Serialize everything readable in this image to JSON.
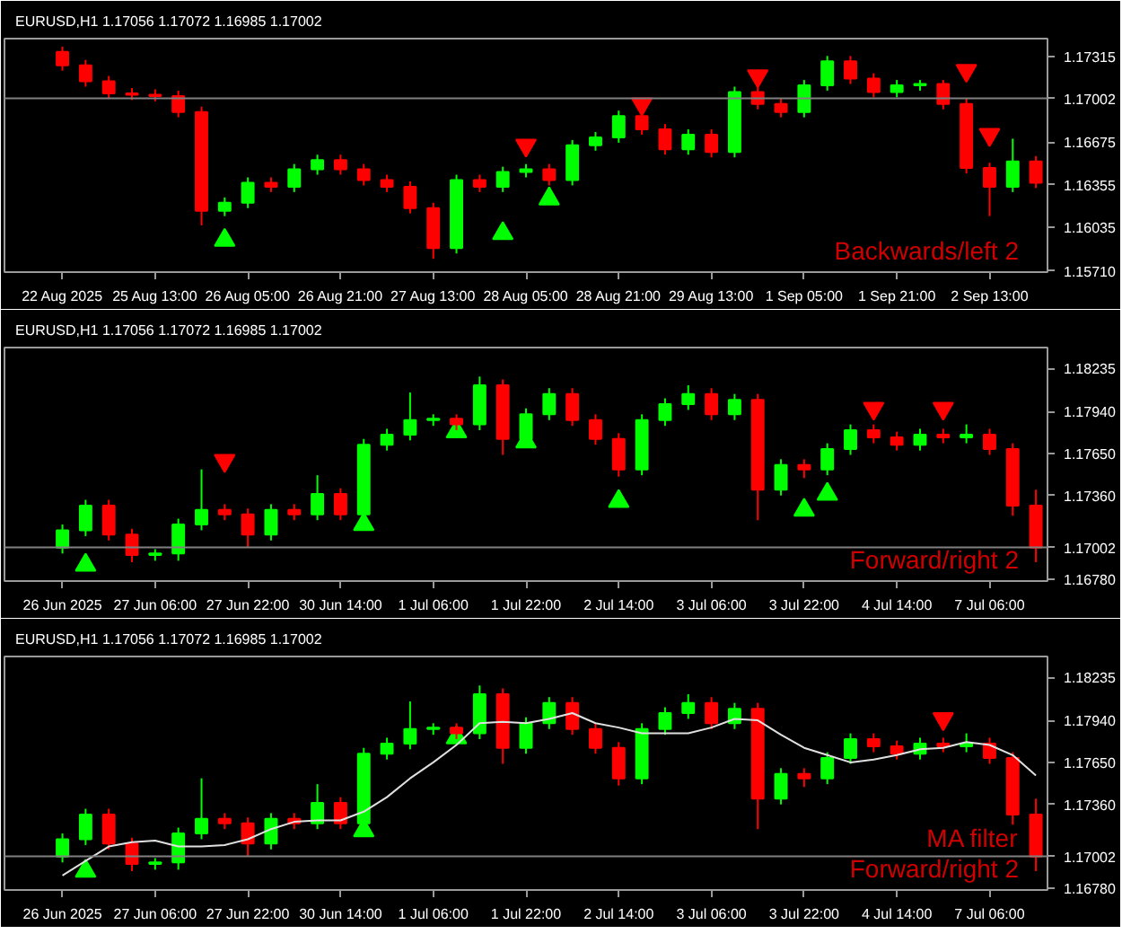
{
  "chart_data": [
    {
      "type": "candlestick",
      "title": "EURUSD,H1  1.17056 1.17072 1.16985 1.17002",
      "categories": [
        "22 Aug 2025",
        null,
        null,
        null,
        "25 Aug 13:00",
        null,
        null,
        null,
        "26 Aug 05:00",
        null,
        null,
        null,
        "26 Aug 21:00",
        null,
        null,
        null,
        "27 Aug 13:00",
        null,
        null,
        null,
        "28 Aug 05:00",
        null,
        null,
        null,
        "28 Aug 21:00",
        null,
        null,
        null,
        "29 Aug 13:00",
        null,
        null,
        null,
        "1 Sep 05:00",
        null,
        null,
        null,
        "1 Sep 21:00",
        null,
        null,
        null,
        "2 Sep 13:00",
        null,
        null
      ],
      "ohlc": [
        [
          1.1735,
          1.1739,
          1.1721,
          1.1725
        ],
        [
          1.1725,
          1.1729,
          1.1709,
          1.1713
        ],
        [
          1.1713,
          1.1717,
          1.17,
          1.1704
        ],
        [
          1.1704,
          1.1708,
          1.1699,
          1.1703
        ],
        [
          1.1703,
          1.1707,
          1.1698,
          1.1702
        ],
        [
          1.1702,
          1.1706,
          1.1686,
          1.169
        ],
        [
          1.169,
          1.1694,
          1.1605,
          1.1616
        ],
        [
          1.1616,
          1.1626,
          1.1612,
          1.1622
        ],
        [
          1.1622,
          1.1641,
          1.1618,
          1.1637
        ],
        [
          1.1637,
          1.1641,
          1.163,
          1.1634
        ],
        [
          1.1634,
          1.1651,
          1.163,
          1.1647
        ],
        [
          1.1647,
          1.1658,
          1.1643,
          1.1654
        ],
        [
          1.1654,
          1.1658,
          1.1643,
          1.1647
        ],
        [
          1.1647,
          1.1651,
          1.1635,
          1.1639
        ],
        [
          1.1639,
          1.1643,
          1.163,
          1.1634
        ],
        [
          1.1634,
          1.1638,
          1.1614,
          1.1618
        ],
        [
          1.1618,
          1.1622,
          1.158,
          1.1588
        ],
        [
          1.1588,
          1.1643,
          1.1584,
          1.1639
        ],
        [
          1.1639,
          1.1643,
          1.163,
          1.1634
        ],
        [
          1.1634,
          1.1649,
          1.163,
          1.1645
        ],
        [
          1.1645,
          1.1651,
          1.1641,
          1.1647
        ],
        [
          1.1647,
          1.1651,
          1.1635,
          1.1639
        ],
        [
          1.1639,
          1.1669,
          1.1635,
          1.1665
        ],
        [
          1.1665,
          1.1675,
          1.1661,
          1.1671
        ],
        [
          1.1671,
          1.1691,
          1.1667,
          1.1687
        ],
        [
          1.1687,
          1.1691,
          1.1673,
          1.1677
        ],
        [
          1.1677,
          1.1681,
          1.1658,
          1.1662
        ],
        [
          1.1662,
          1.1677,
          1.1658,
          1.1673
        ],
        [
          1.1673,
          1.1677,
          1.1656,
          1.166
        ],
        [
          1.166,
          1.1709,
          1.1656,
          1.1705
        ],
        [
          1.1705,
          1.1709,
          1.1692,
          1.1696
        ],
        [
          1.1696,
          1.17,
          1.1686,
          1.169
        ],
        [
          1.169,
          1.1714,
          1.1686,
          1.171
        ],
        [
          1.171,
          1.1732,
          1.1706,
          1.1728
        ],
        [
          1.1728,
          1.1732,
          1.1711,
          1.1715
        ],
        [
          1.1715,
          1.1719,
          1.1701,
          1.1705
        ],
        [
          1.1705,
          1.1714,
          1.1701,
          1.171
        ],
        [
          1.171,
          1.1714,
          1.1706,
          1.1711
        ],
        [
          1.1711,
          1.1714,
          1.1692,
          1.1696
        ],
        [
          1.1696,
          1.17,
          1.1644,
          1.1648
        ],
        [
          1.1648,
          1.1652,
          1.1612,
          1.1634
        ],
        [
          1.1634,
          1.167,
          1.163,
          1.1653
        ],
        [
          1.1653,
          1.1657,
          1.1633,
          1.1637
        ]
      ],
      "series": [
        {
          "type": "scatter",
          "marker": "triangle",
          "color": "#00ff00",
          "values": [
            null,
            null,
            null,
            null,
            null,
            null,
            null,
            1.1594,
            null,
            null,
            null,
            null,
            null,
            null,
            null,
            null,
            null,
            null,
            null,
            1.1599,
            null,
            1.1625,
            null,
            null,
            null,
            null,
            null,
            null,
            null,
            null,
            null,
            null,
            null,
            null,
            null,
            null,
            null,
            null,
            null,
            null,
            null,
            null,
            null
          ]
        },
        {
          "type": "scatter",
          "marker": "triangle_down",
          "color": "#ff0000",
          "values": [
            null,
            null,
            null,
            null,
            null,
            null,
            null,
            null,
            null,
            null,
            null,
            null,
            null,
            null,
            null,
            null,
            null,
            null,
            null,
            null,
            1.1665,
            null,
            null,
            null,
            null,
            1.1696,
            null,
            null,
            null,
            null,
            1.1717,
            null,
            null,
            null,
            null,
            null,
            null,
            null,
            null,
            1.1721,
            1.1673,
            null,
            null
          ]
        }
      ],
      "ylim": [
        1.157,
        1.1745
      ],
      "yticks": [
        1.17315,
        1.16675,
        1.16355,
        1.16035,
        {
          "value": 1.1571,
          "label": "1.15710"
        }
      ],
      "ref_lines": [
        {
          "axis": "y",
          "value": 1.17002,
          "label": "1.17002",
          "color": "#808080"
        }
      ],
      "annotations": [
        "Backwards/left 2"
      ]
    },
    {
      "type": "candlestick",
      "title": "EURUSD,H1  1.17056 1.17072 1.16985 1.17002",
      "categories": [
        "26 Jun 2025",
        null,
        null,
        null,
        "27 Jun 06:00",
        null,
        null,
        null,
        "27 Jun 22:00",
        null,
        null,
        null,
        "30 Jun 14:00",
        null,
        null,
        null,
        "1 Jul 06:00",
        null,
        null,
        null,
        "1 Jul 22:00",
        null,
        null,
        null,
        "2 Jul 14:00",
        null,
        null,
        null,
        "3 Jul 06:00",
        null,
        null,
        null,
        "3 Jul 22:00",
        null,
        null,
        null,
        "4 Jul 14:00",
        null,
        null,
        null,
        "7 Jul 06:00",
        null,
        null
      ],
      "ohlc": [
        [
          1.17,
          1.1716,
          1.1696,
          1.1712
        ],
        [
          1.1712,
          1.1733,
          1.1708,
          1.1729
        ],
        [
          1.1729,
          1.1733,
          1.1705,
          1.1709
        ],
        [
          1.1709,
          1.1713,
          1.169,
          1.1695
        ],
        [
          1.1695,
          1.1699,
          1.1691,
          1.1696
        ],
        [
          1.1696,
          1.172,
          1.1691,
          1.1716
        ],
        [
          1.1716,
          1.1754,
          1.1712,
          1.1726
        ],
        [
          1.1726,
          1.173,
          1.1719,
          1.1723
        ],
        [
          1.1723,
          1.1727,
          1.17,
          1.1709
        ],
        [
          1.1709,
          1.173,
          1.1705,
          1.1726
        ],
        [
          1.1726,
          1.173,
          1.1719,
          1.1723
        ],
        [
          1.1723,
          1.175,
          1.1719,
          1.1737
        ],
        [
          1.1737,
          1.1741,
          1.1719,
          1.1723
        ],
        [
          1.1723,
          1.1775,
          1.1719,
          1.1771
        ],
        [
          1.1771,
          1.1782,
          1.1767,
          1.1778
        ],
        [
          1.1778,
          1.1807,
          1.1774,
          1.1788
        ],
        [
          1.1788,
          1.1792,
          1.1784,
          1.1789
        ],
        [
          1.1789,
          1.1792,
          1.1781,
          1.1785
        ],
        [
          1.1785,
          1.1818,
          1.1781,
          1.1812
        ],
        [
          1.1812,
          1.1816,
          1.1764,
          1.1775
        ],
        [
          1.1775,
          1.1796,
          1.1771,
          1.1792
        ],
        [
          1.1792,
          1.181,
          1.1788,
          1.1806
        ],
        [
          1.1806,
          1.181,
          1.1784,
          1.1788
        ],
        [
          1.1788,
          1.1792,
          1.1771,
          1.1775
        ],
        [
          1.1775,
          1.1779,
          1.1749,
          1.1754
        ],
        [
          1.1754,
          1.1792,
          1.175,
          1.1788
        ],
        [
          1.1788,
          1.1803,
          1.1784,
          1.1799
        ],
        [
          1.1799,
          1.1812,
          1.1795,
          1.1806
        ],
        [
          1.1806,
          1.181,
          1.1788,
          1.1792
        ],
        [
          1.1792,
          1.1806,
          1.1788,
          1.1802
        ],
        [
          1.1802,
          1.1806,
          1.1719,
          1.174
        ],
        [
          1.174,
          1.1761,
          1.1736,
          1.1757
        ],
        [
          1.1757,
          1.1761,
          1.1748,
          1.1754
        ],
        [
          1.1754,
          1.1772,
          1.175,
          1.1768
        ],
        [
          1.1768,
          1.1785,
          1.1764,
          1.1781
        ],
        [
          1.1781,
          1.1785,
          1.1772,
          1.1776
        ],
        [
          1.1776,
          1.178,
          1.1767,
          1.1771
        ],
        [
          1.1771,
          1.1782,
          1.1767,
          1.1778
        ],
        [
          1.1778,
          1.1782,
          1.1772,
          1.1776
        ],
        [
          1.1776,
          1.1785,
          1.1772,
          1.1778
        ],
        [
          1.1778,
          1.1782,
          1.1764,
          1.1768
        ],
        [
          1.1768,
          1.1772,
          1.1722,
          1.1729
        ],
        [
          1.1729,
          1.174,
          1.169,
          1.17
        ]
      ],
      "series": [
        {
          "type": "scatter",
          "marker": "triangle",
          "color": "#00ff00",
          "values": [
            null,
            1.1688,
            null,
            null,
            null,
            null,
            null,
            null,
            null,
            null,
            null,
            null,
            null,
            1.1716,
            null,
            null,
            null,
            1.178,
            null,
            null,
            1.1773,
            null,
            null,
            null,
            1.1732,
            null,
            null,
            null,
            null,
            null,
            null,
            null,
            1.1726,
            1.1737,
            null,
            null,
            null,
            null,
            null,
            null,
            null,
            null,
            null
          ]
        },
        {
          "type": "scatter",
          "marker": "triangle_down",
          "color": "#ff0000",
          "values": [
            null,
            null,
            null,
            null,
            null,
            null,
            null,
            1.176,
            null,
            null,
            null,
            null,
            null,
            null,
            null,
            null,
            null,
            null,
            null,
            null,
            null,
            null,
            null,
            null,
            null,
            null,
            null,
            null,
            null,
            null,
            null,
            null,
            null,
            null,
            null,
            1.1796,
            null,
            null,
            1.1796,
            null,
            null,
            null,
            null
          ]
        }
      ],
      "ylim": [
        1.1677,
        1.1838
      ],
      "yticks": [
        1.18235,
        {
          "value": 1.1794,
          "label": "1.17940"
        },
        {
          "value": 1.1765,
          "label": "1.17650"
        },
        {
          "value": 1.1736,
          "label": "1.17360"
        },
        {
          "value": 1.1678,
          "label": "1.16780"
        }
      ],
      "ref_lines": [
        {
          "axis": "y",
          "value": 1.17002,
          "label": "1.17002",
          "color": "#808080"
        }
      ],
      "annotations": [
        "Forward/right 2"
      ]
    },
    {
      "type": "candlestick",
      "title": "EURUSD,H1  1.17056 1.17072 1.16985 1.17002",
      "categories": [
        "26 Jun 2025",
        null,
        null,
        null,
        "27 Jun 06:00",
        null,
        null,
        null,
        "27 Jun 22:00",
        null,
        null,
        null,
        "30 Jun 14:00",
        null,
        null,
        null,
        "1 Jul 06:00",
        null,
        null,
        null,
        "1 Jul 22:00",
        null,
        null,
        null,
        "2 Jul 14:00",
        null,
        null,
        null,
        "3 Jul 06:00",
        null,
        null,
        null,
        "3 Jul 22:00",
        null,
        null,
        null,
        "4 Jul 14:00",
        null,
        null,
        null,
        "7 Jul 06:00",
        null,
        null
      ],
      "ohlc": [
        [
          1.17,
          1.1716,
          1.1696,
          1.1712
        ],
        [
          1.1712,
          1.1733,
          1.1708,
          1.1729
        ],
        [
          1.1729,
          1.1733,
          1.1705,
          1.1709
        ],
        [
          1.1709,
          1.1713,
          1.169,
          1.1695
        ],
        [
          1.1695,
          1.1699,
          1.1691,
          1.1696
        ],
        [
          1.1696,
          1.172,
          1.1691,
          1.1716
        ],
        [
          1.1716,
          1.1754,
          1.1712,
          1.1726
        ],
        [
          1.1726,
          1.173,
          1.1719,
          1.1723
        ],
        [
          1.1723,
          1.1727,
          1.17,
          1.1709
        ],
        [
          1.1709,
          1.173,
          1.1705,
          1.1726
        ],
        [
          1.1726,
          1.173,
          1.1719,
          1.1723
        ],
        [
          1.1723,
          1.175,
          1.1719,
          1.1737
        ],
        [
          1.1737,
          1.1741,
          1.1719,
          1.1723
        ],
        [
          1.1723,
          1.1775,
          1.1719,
          1.1771
        ],
        [
          1.1771,
          1.1782,
          1.1767,
          1.1778
        ],
        [
          1.1778,
          1.1807,
          1.1774,
          1.1788
        ],
        [
          1.1788,
          1.1792,
          1.1784,
          1.1789
        ],
        [
          1.1789,
          1.1792,
          1.1781,
          1.1785
        ],
        [
          1.1785,
          1.1818,
          1.1781,
          1.1812
        ],
        [
          1.1812,
          1.1816,
          1.1764,
          1.1775
        ],
        [
          1.1775,
          1.1796,
          1.1771,
          1.1792
        ],
        [
          1.1792,
          1.181,
          1.1788,
          1.1806
        ],
        [
          1.1806,
          1.181,
          1.1784,
          1.1788
        ],
        [
          1.1788,
          1.1792,
          1.1771,
          1.1775
        ],
        [
          1.1775,
          1.1779,
          1.1749,
          1.1754
        ],
        [
          1.1754,
          1.1792,
          1.175,
          1.1788
        ],
        [
          1.1788,
          1.1803,
          1.1784,
          1.1799
        ],
        [
          1.1799,
          1.1812,
          1.1795,
          1.1806
        ],
        [
          1.1806,
          1.181,
          1.1788,
          1.1792
        ],
        [
          1.1792,
          1.1806,
          1.1788,
          1.1802
        ],
        [
          1.1802,
          1.1806,
          1.1719,
          1.174
        ],
        [
          1.174,
          1.1761,
          1.1736,
          1.1757
        ],
        [
          1.1757,
          1.1761,
          1.1748,
          1.1754
        ],
        [
          1.1754,
          1.1772,
          1.175,
          1.1768
        ],
        [
          1.1768,
          1.1785,
          1.1764,
          1.1781
        ],
        [
          1.1781,
          1.1785,
          1.1772,
          1.1776
        ],
        [
          1.1776,
          1.178,
          1.1767,
          1.1771
        ],
        [
          1.1771,
          1.1782,
          1.1767,
          1.1778
        ],
        [
          1.1778,
          1.1782,
          1.1772,
          1.1776
        ],
        [
          1.1776,
          1.1785,
          1.1772,
          1.1778
        ],
        [
          1.1778,
          1.1782,
          1.1764,
          1.1768
        ],
        [
          1.1768,
          1.1772,
          1.1722,
          1.1729
        ],
        [
          1.1729,
          1.174,
          1.169,
          1.17
        ]
      ],
      "series": [
        {
          "type": "line",
          "color": "#e0e0e0",
          "values": [
            1.1687,
            1.1697,
            1.1707,
            1.171,
            1.1711,
            1.1707,
            1.1707,
            1.1708,
            1.1712,
            1.1719,
            1.1724,
            1.1725,
            1.1725,
            1.1731,
            1.1741,
            1.1754,
            1.1765,
            1.1777,
            1.1792,
            1.1793,
            1.1792,
            1.1795,
            1.1799,
            1.1792,
            1.1789,
            1.1785,
            1.1785,
            1.1785,
            1.1789,
            1.1795,
            1.1794,
            1.1784,
            1.1775,
            1.177,
            1.1765,
            1.1767,
            1.177,
            1.1774,
            1.1775,
            1.1779,
            1.1777,
            1.177,
            1.1756
          ]
        },
        {
          "type": "scatter",
          "marker": "triangle",
          "color": "#00ff00",
          "values": [
            null,
            1.169,
            null,
            null,
            null,
            null,
            null,
            null,
            null,
            null,
            null,
            null,
            null,
            1.1718,
            null,
            null,
            null,
            1.1782,
            null,
            null,
            null,
            null,
            null,
            null,
            null,
            null,
            null,
            null,
            null,
            null,
            null,
            null,
            null,
            null,
            null,
            null,
            null,
            null,
            null,
            null,
            null,
            null,
            null
          ]
        },
        {
          "type": "scatter",
          "marker": "triangle_down",
          "color": "#ff0000",
          "values": [
            null,
            null,
            null,
            null,
            null,
            null,
            null,
            null,
            null,
            null,
            null,
            null,
            null,
            null,
            null,
            null,
            null,
            null,
            null,
            null,
            null,
            null,
            null,
            null,
            null,
            null,
            null,
            null,
            null,
            null,
            null,
            null,
            null,
            null,
            null,
            null,
            null,
            null,
            1.1795,
            null,
            null,
            null,
            null
          ]
        }
      ],
      "ylim": [
        1.1677,
        1.1838
      ],
      "yticks": [
        1.18235,
        {
          "value": 1.1794,
          "label": "1.17940"
        },
        {
          "value": 1.1765,
          "label": "1.17650"
        },
        {
          "value": 1.1736,
          "label": "1.17360"
        },
        {
          "value": 1.1678,
          "label": "1.16780"
        }
      ],
      "ref_lines": [
        {
          "axis": "y",
          "value": 1.17002,
          "label": "1.17002",
          "color": "#808080"
        }
      ],
      "annotations": [
        "MA filter",
        "Forward/right 2"
      ]
    }
  ]
}
